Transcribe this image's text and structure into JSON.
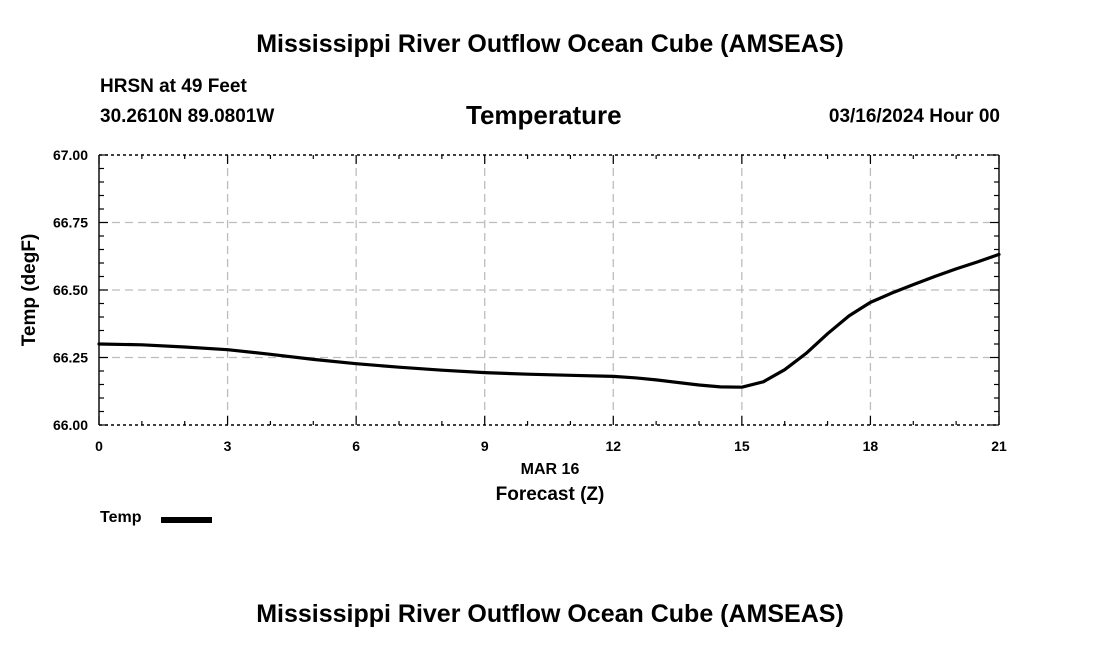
{
  "header": {
    "title": "Mississippi River Outflow Ocean Cube (AMSEAS)",
    "station_line": "HRSN at 49 Feet",
    "coordinates": "30.2610N  89.0801W",
    "datetime": "03/16/2024 Hour 00"
  },
  "footer": {
    "title": "Mississippi River Outflow Ocean Cube (AMSEAS)"
  },
  "chart_data": {
    "type": "line",
    "title": "Temperature",
    "xlabel": "Forecast (Z)",
    "xsublabel": "MAR 16",
    "ylabel": "Temp (degF)",
    "xlim": [
      0,
      21
    ],
    "ylim": [
      66.0,
      67.0
    ],
    "xticks": [
      0,
      3,
      6,
      9,
      12,
      15,
      18,
      21
    ],
    "xtick_labels": [
      "0",
      "3",
      "6",
      "9",
      "12",
      "15",
      "18",
      "21"
    ],
    "yticks": [
      66.0,
      66.25,
      66.5,
      66.75,
      67.0
    ],
    "ytick_labels": [
      "66.00",
      "66.25",
      "66.50",
      "66.75",
      "67.00"
    ],
    "grid": true,
    "legend_position": "bottom-left",
    "series": [
      {
        "name": "Temp",
        "color": "#000000",
        "x": [
          0,
          1,
          2,
          3,
          4,
          5,
          6,
          7,
          8,
          9,
          10,
          11,
          12,
          12.5,
          13,
          14,
          14.5,
          15,
          15.5,
          16,
          16.5,
          17,
          17.5,
          18,
          18.5,
          19,
          19.5,
          20,
          20.5,
          21
        ],
        "values": [
          66.3,
          66.297,
          66.289,
          66.279,
          66.262,
          66.243,
          66.227,
          66.214,
          66.203,
          66.194,
          66.188,
          66.184,
          66.18,
          66.175,
          66.167,
          66.148,
          66.141,
          66.14,
          66.16,
          66.205,
          66.265,
          66.338,
          66.404,
          66.454,
          66.489,
          66.52,
          66.55,
          66.578,
          66.604,
          66.632
        ]
      }
    ]
  }
}
